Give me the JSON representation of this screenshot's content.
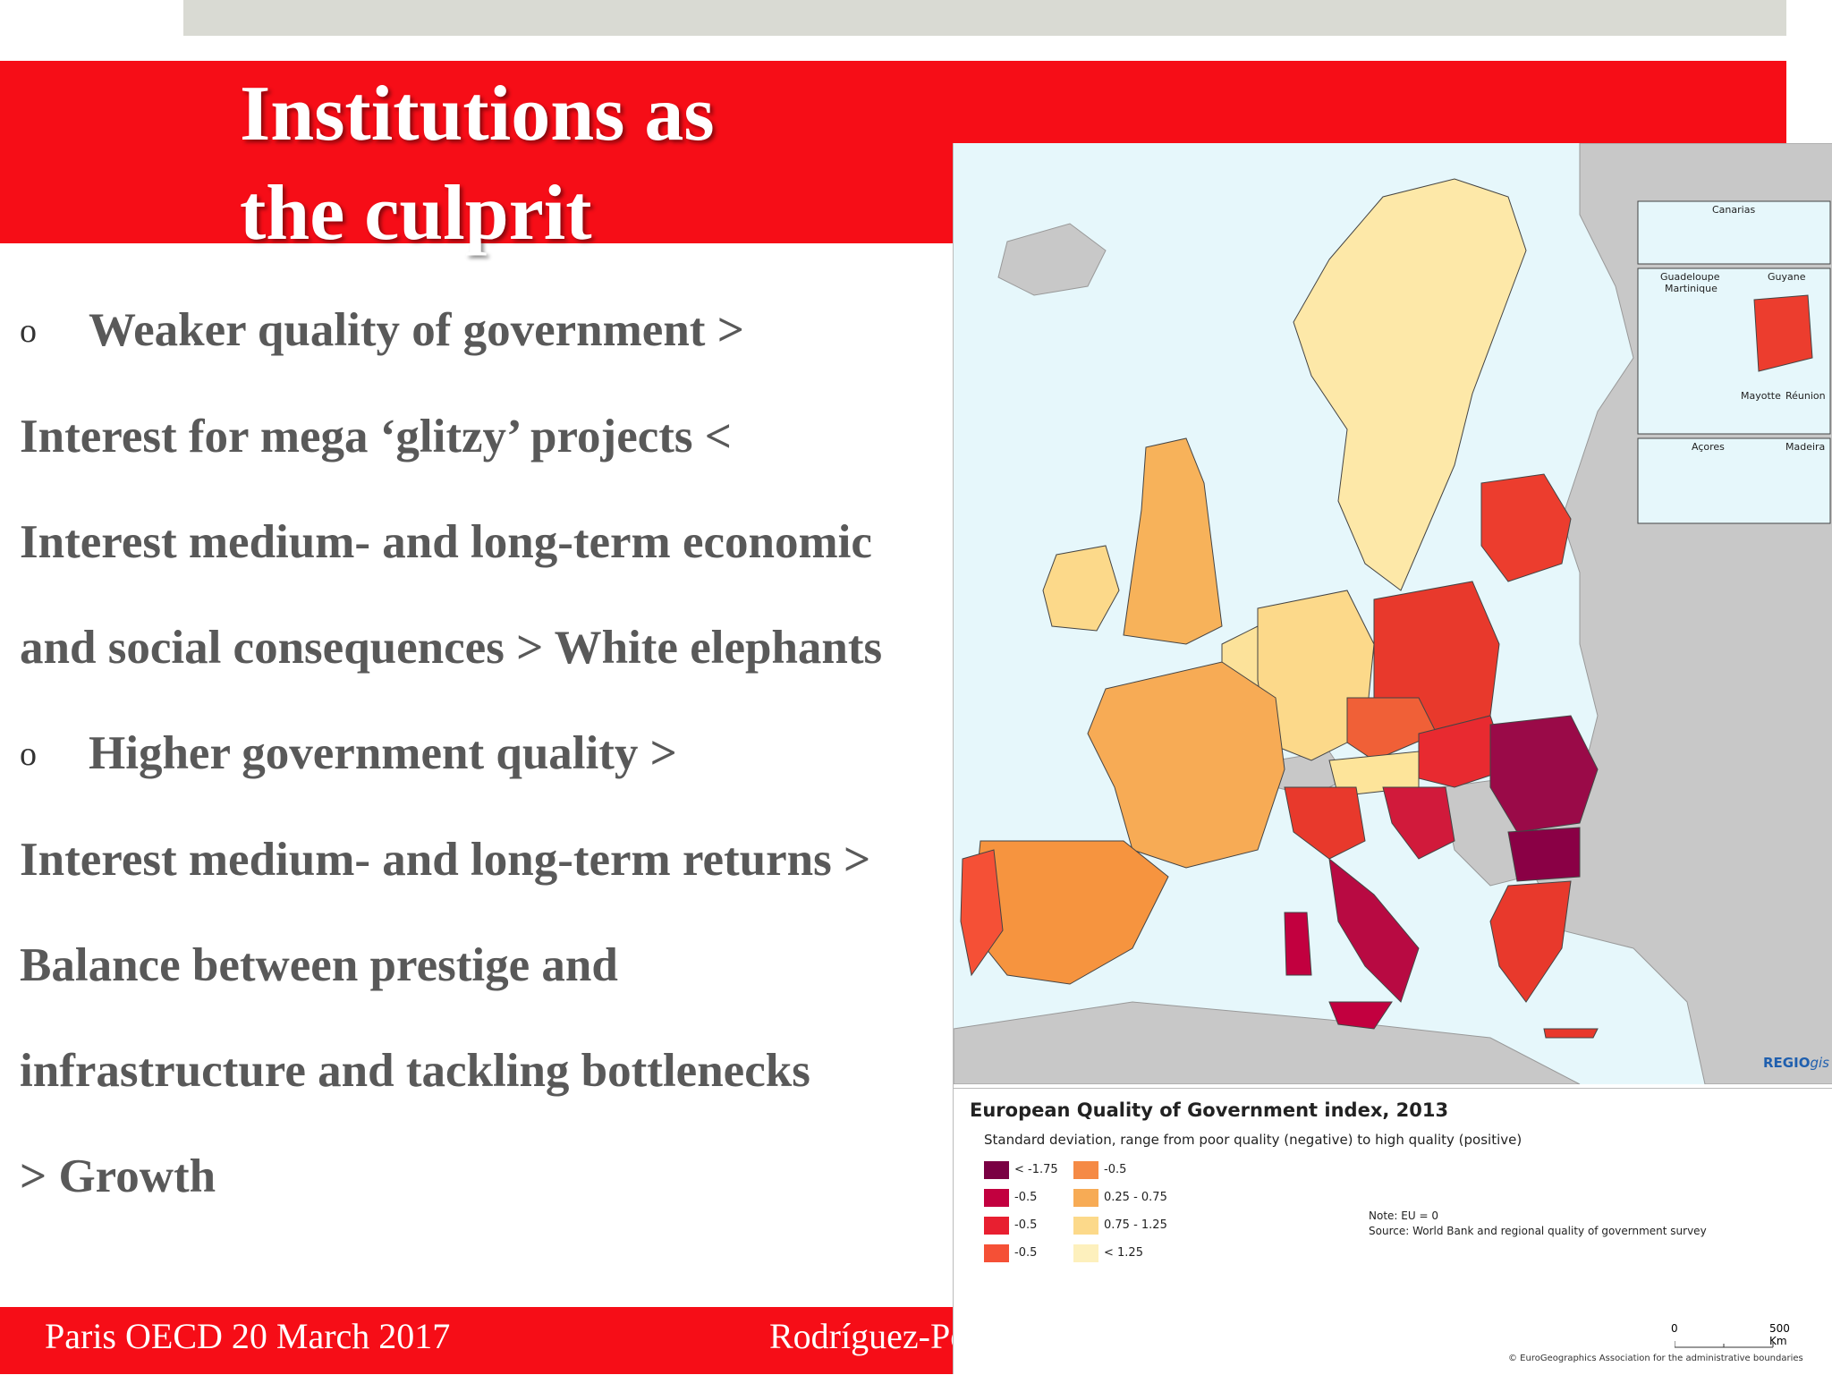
{
  "slide": {
    "title_lines": [
      "Institutions as",
      "the culprit"
    ],
    "bullet_symbol": "o",
    "lines": [
      "Weaker quality of government >",
      "Interest for mega ‘glitzy’ projects <",
      "Interest medium- and long-term economic",
      "and social consequences > White elephants",
      "Higher government quality >",
      "Interest medium- and long-term returns >",
      "Balance between prestige and",
      "infrastructure and tackling bottlenecks",
      "> Growth"
    ],
    "footer_left": "Paris OECD 20 March 2017",
    "footer_right": "Rodríguez-Po"
  },
  "map": {
    "title": "European Quality of Government index, 2013",
    "subtitle": "Standard deviation, range from poor quality (negative) to high quality (positive)",
    "brand_a": "REGIO",
    "brand_b": "gis",
    "insets": [
      "Canarias",
      "Guadeloupe",
      "Martinique",
      "Guyane",
      "Mayotte",
      "Réunion",
      "Açores",
      "Madeira"
    ],
    "legend": [
      {
        "label": "< -1.75",
        "color": "#7a0043"
      },
      {
        "label": "-0.5",
        "color": "#c2003f"
      },
      {
        "label": "-0.5",
        "color": "#e81f30"
      },
      {
        "label": "-0.5",
        "color": "#f55036"
      },
      {
        "label": "-0.5",
        "color": "#f58a45"
      },
      {
        "label": "0.25 - 0.75",
        "color": "#f7ab55"
      },
      {
        "label": "0.75 - 1.25",
        "color": "#fcd98a"
      },
      {
        "label": "< 1.25",
        "color": "#fdf0bd"
      }
    ],
    "note": "Note: EU = 0",
    "source": "Source: World Bank and regional quality of government survey",
    "scale_zero": "0",
    "scale_end": "500 Km",
    "copyright": "© EuroGeographics Association for the administrative boundaries",
    "colors": {
      "sea": "#e6f7fb",
      "non_eu_land": "#c8c8c8"
    }
  }
}
